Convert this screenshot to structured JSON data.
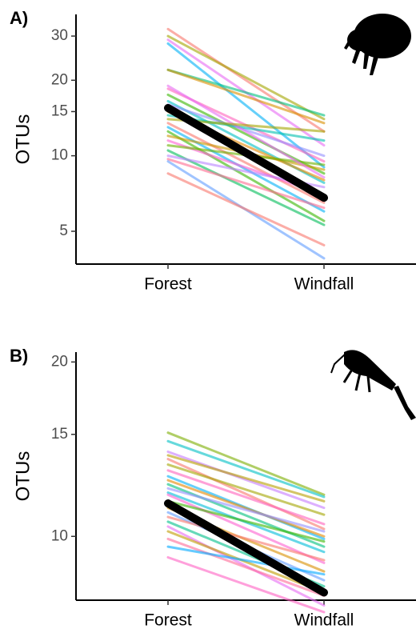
{
  "chart_data": [
    {
      "type": "line",
      "label": "A)",
      "ylabel": "OTUs",
      "categories": [
        "Forest",
        "Windfall"
      ],
      "log_scale": true,
      "ylim": [
        3.7,
        36.6
      ],
      "yticks": [
        5,
        10,
        15,
        20,
        30
      ],
      "series": [
        {
          "color": "#f8766d",
          "values": [
            32,
            12.5
          ]
        },
        {
          "color": "#a3a500",
          "values": [
            30,
            14
          ]
        },
        {
          "color": "#e76bf3",
          "values": [
            29,
            11
          ]
        },
        {
          "color": "#00b0f6",
          "values": [
            28,
            9
          ]
        },
        {
          "color": "#00bf7d",
          "values": [
            22,
            14.5
          ]
        },
        {
          "color": "#d89000",
          "values": [
            22,
            13.5
          ]
        },
        {
          "color": "#ff62bc",
          "values": [
            18.5,
            9.5
          ]
        },
        {
          "color": "#39b600",
          "values": [
            17.5,
            8.5
          ]
        },
        {
          "color": "#00bfc4",
          "values": [
            16.5,
            7.8
          ]
        },
        {
          "color": "#9590ff",
          "values": [
            16,
            10
          ]
        },
        {
          "color": "#e58700",
          "values": [
            15,
            8
          ]
        },
        {
          "color": "#00c0af",
          "values": [
            14.5,
            11.5
          ]
        },
        {
          "color": "#f8766d",
          "values": [
            13.5,
            6.5
          ]
        },
        {
          "color": "#00b0f6",
          "values": [
            13,
            6
          ]
        },
        {
          "color": "#39b600",
          "values": [
            12.5,
            5.5
          ]
        },
        {
          "color": "#c99800",
          "values": [
            12,
            8.8
          ]
        },
        {
          "color": "#fd61d1",
          "values": [
            11.5,
            7
          ]
        },
        {
          "color": "#6bb100",
          "values": [
            11,
            9.2
          ]
        },
        {
          "color": "#00bc59",
          "values": [
            10.5,
            5.3
          ]
        },
        {
          "color": "#b983ff",
          "values": [
            10,
            7.5
          ]
        },
        {
          "color": "#ff6c91",
          "values": [
            9.7,
            6.2
          ]
        },
        {
          "color": "#619cff",
          "values": [
            9.5,
            3.9
          ]
        },
        {
          "color": "#f8766d",
          "values": [
            8.5,
            4.4
          ]
        },
        {
          "color": "#e76bf3",
          "values": [
            19,
            8.2
          ]
        },
        {
          "color": "#a3a500",
          "values": [
            14,
            12.5
          ]
        },
        {
          "color": "#000000",
          "values": [
            15.5,
            6.8
          ],
          "linewidth": 10
        }
      ]
    },
    {
      "type": "line",
      "label": "B)",
      "ylabel": "OTUs",
      "categories": [
        "Forest",
        "Windfall"
      ],
      "log_scale": true,
      "ylim": [
        7.76,
        20.8
      ],
      "yticks": [
        10,
        15,
        20
      ],
      "series": [
        {
          "color": "#7cae00",
          "values": [
            15.1,
            11.8
          ]
        },
        {
          "color": "#00bfc4",
          "values": [
            14.6,
            11.7
          ]
        },
        {
          "color": "#c77cff",
          "values": [
            14,
            11.2
          ]
        },
        {
          "color": "#f8766d",
          "values": [
            13.6,
            10.3
          ]
        },
        {
          "color": "#a3a500",
          "values": [
            13.3,
            10.9
          ]
        },
        {
          "color": "#ff62bc",
          "values": [
            13,
            10.5
          ]
        },
        {
          "color": "#00b0f6",
          "values": [
            12.7,
            9.9
          ]
        },
        {
          "color": "#e58700",
          "values": [
            12.5,
            10
          ]
        },
        {
          "color": "#00bf7d",
          "values": [
            12.3,
            9.6
          ]
        },
        {
          "color": "#9590ff",
          "values": [
            12.1,
            10.2
          ]
        },
        {
          "color": "#00bcd8",
          "values": [
            11.9,
            9.4
          ]
        },
        {
          "color": "#fd61d1",
          "values": [
            11.8,
            9
          ]
        },
        {
          "color": "#39b600",
          "values": [
            11.5,
            9.8
          ]
        },
        {
          "color": "#d89000",
          "values": [
            11.2,
            8.7
          ]
        },
        {
          "color": "#619cff",
          "values": [
            11,
            8.4
          ]
        },
        {
          "color": "#f8766d",
          "values": [
            10.8,
            9.1
          ]
        },
        {
          "color": "#00c08b",
          "values": [
            10.6,
            8.2
          ]
        },
        {
          "color": "#e76bf3",
          "values": [
            10.4,
            7.6
          ]
        },
        {
          "color": "#c09b00",
          "values": [
            10.2,
            8.0
          ]
        },
        {
          "color": "#ff6a98",
          "values": [
            9.9,
            7.9
          ]
        },
        {
          "color": "#00a9ff",
          "values": [
            9.6,
            8.6
          ]
        },
        {
          "color": "#ff61c3",
          "values": [
            9.2,
            7.4
          ]
        },
        {
          "color": "#b79f00",
          "values": [
            13.8,
            11.5
          ]
        },
        {
          "color": "#000000",
          "values": [
            11.4,
            8.0
          ],
          "linewidth": 10
        }
      ]
    }
  ]
}
